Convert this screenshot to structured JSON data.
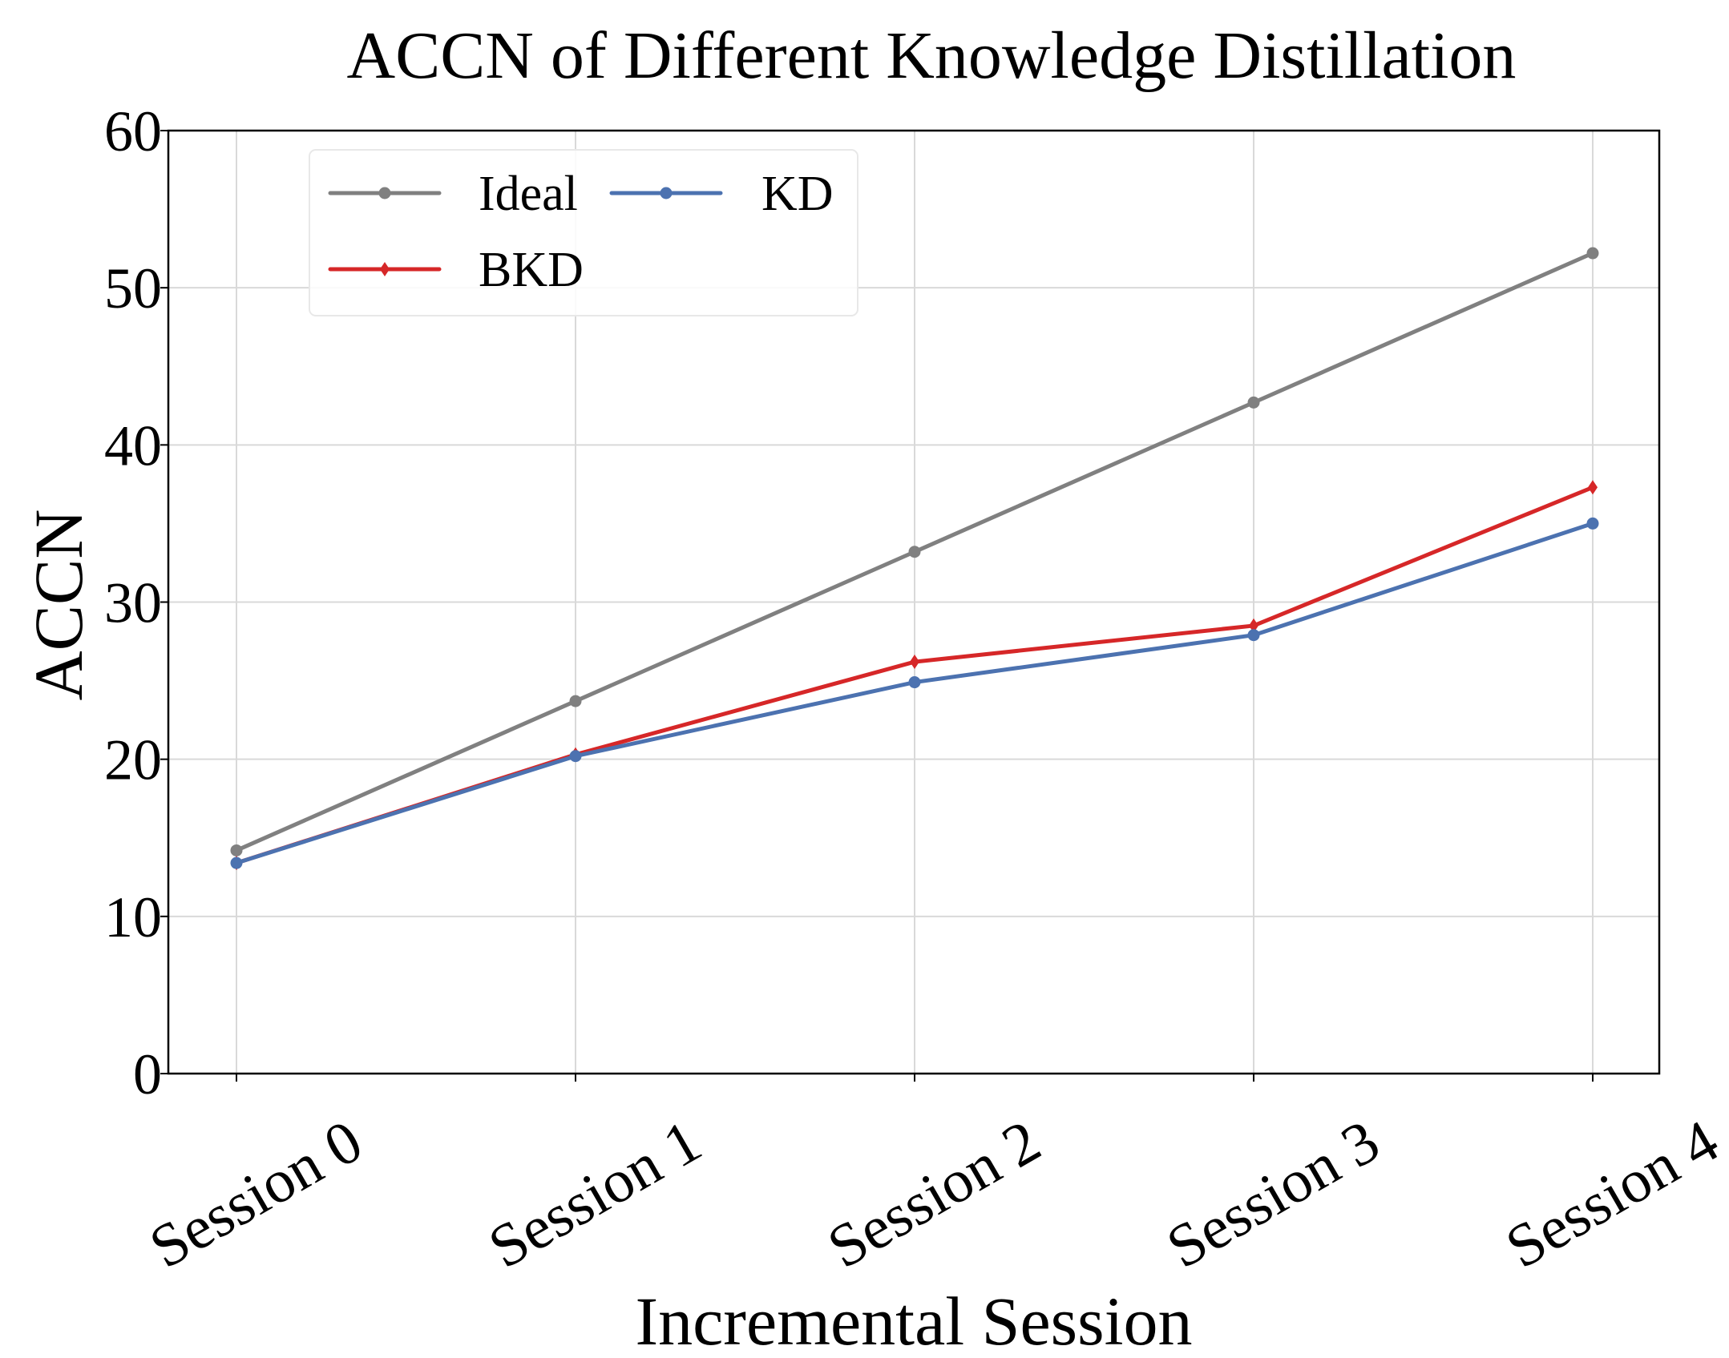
{
  "chart_data": {
    "type": "line",
    "title": "ACCN of Different Knowledge Distillation",
    "xlabel": "Incremental Session",
    "ylabel": "ACCN",
    "categories": [
      "Session 0",
      "Session 1",
      "Session 2",
      "Session 3",
      "Session 4"
    ],
    "ylim": [
      0,
      60
    ],
    "yticks": [
      "0",
      "10",
      "20",
      "30",
      "40",
      "50",
      "60"
    ],
    "grid": true,
    "legend_position": "upper-left",
    "series": [
      {
        "name": "Ideal",
        "values": [
          14.2,
          23.7,
          33.2,
          42.7,
          52.2
        ],
        "color": "#808080",
        "marker": "circle"
      },
      {
        "name": "KD",
        "values": [
          13.4,
          20.2,
          24.9,
          27.9,
          35.0
        ],
        "color": "#4c72b0",
        "marker": "circle"
      },
      {
        "name": "BKD",
        "values": [
          13.4,
          20.3,
          26.2,
          28.5,
          37.3
        ],
        "color": "#d62728",
        "marker": "diamond"
      }
    ]
  }
}
